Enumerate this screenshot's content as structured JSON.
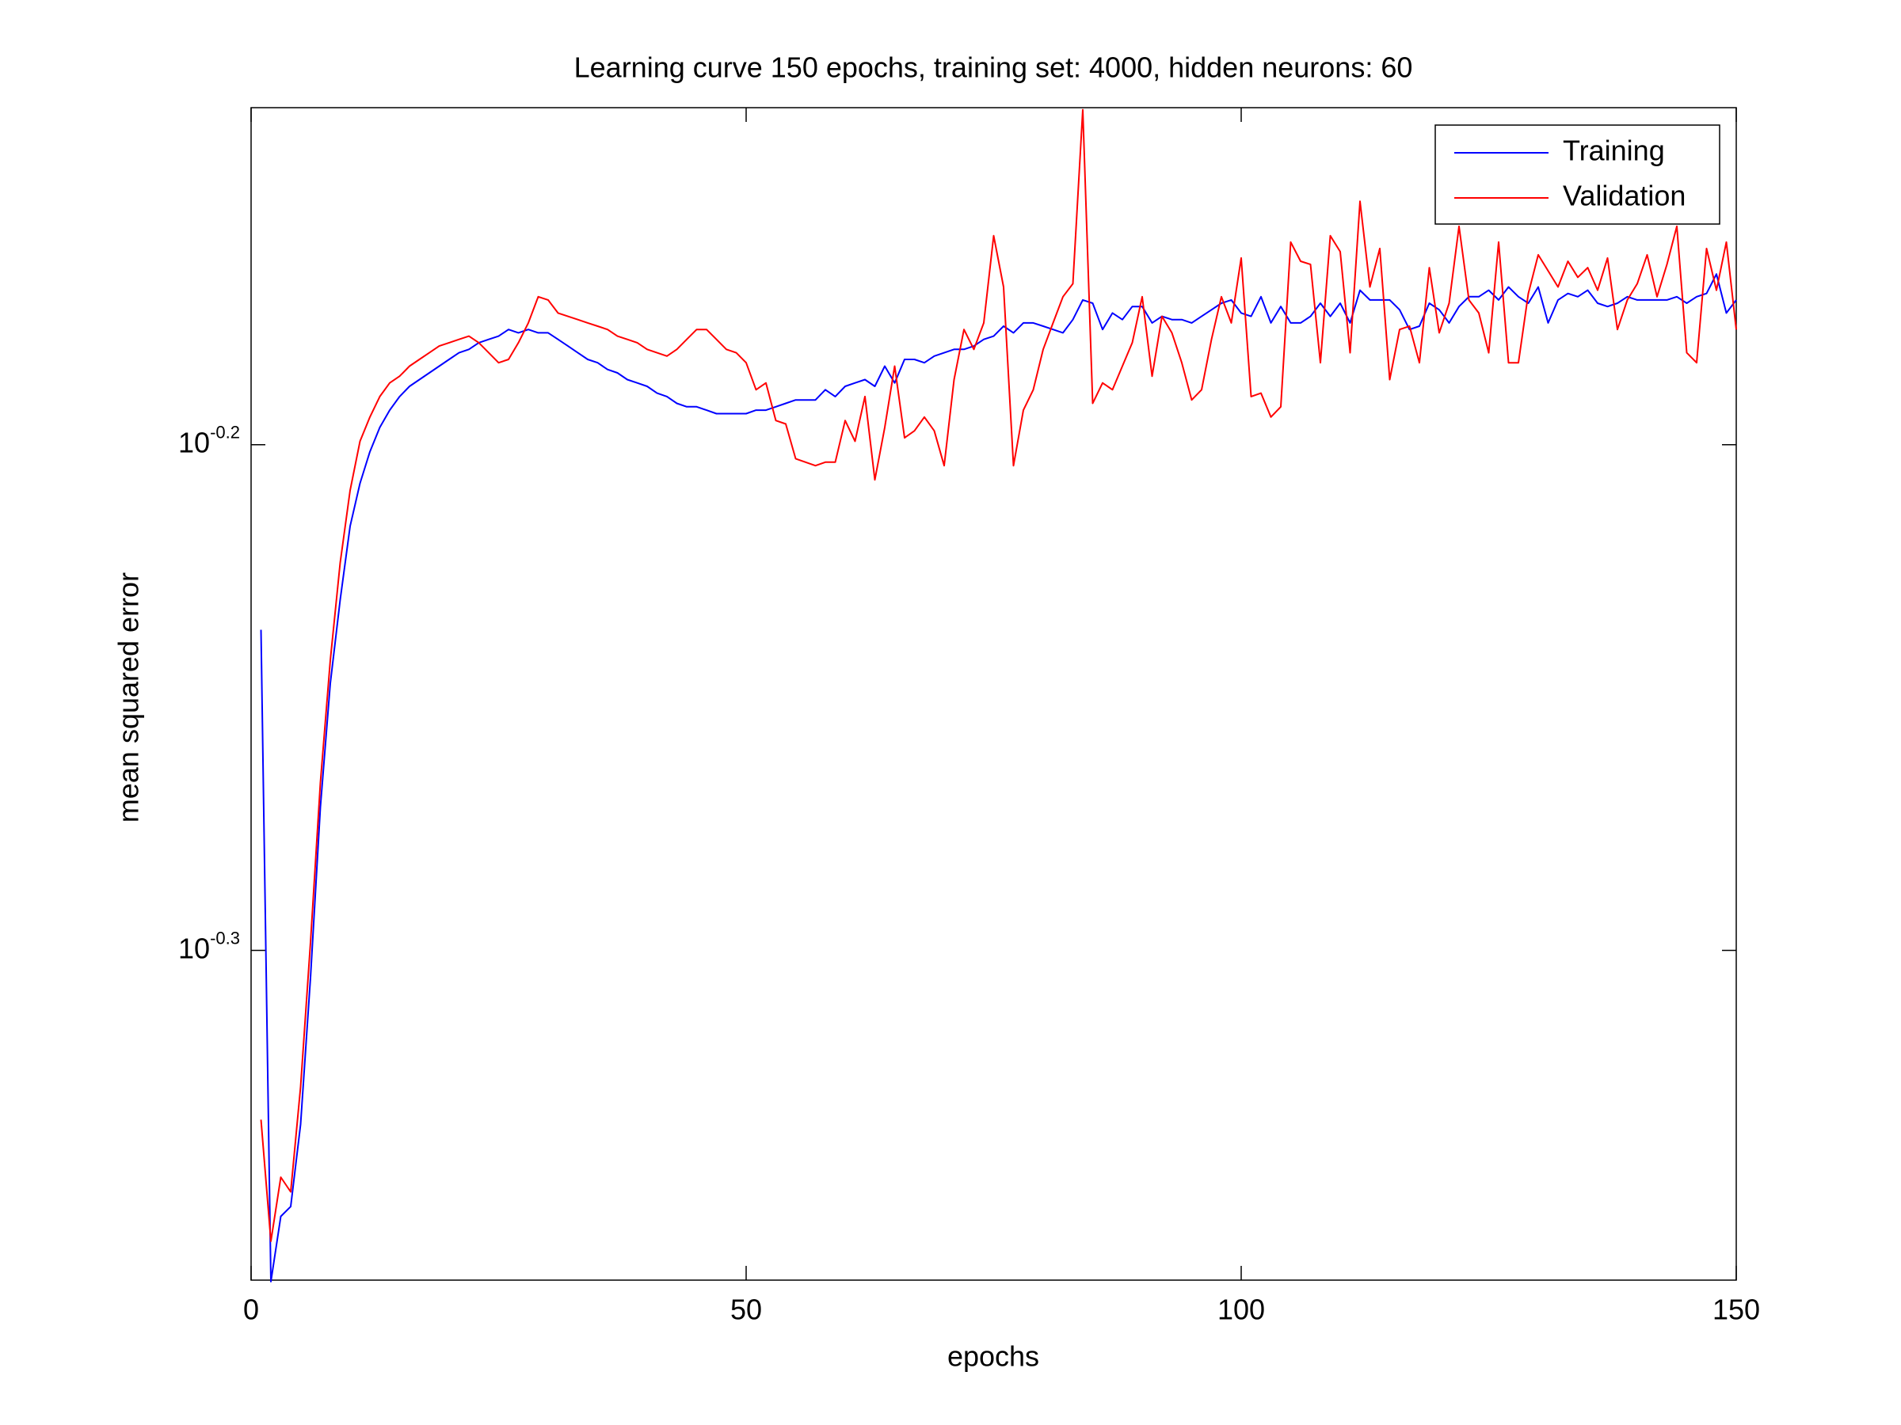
{
  "chart_data": {
    "type": "line",
    "title": "Learning curve 150 epochs, training set: 4000, hidden neurons: 60",
    "xlabel": "epochs",
    "ylabel": "mean squared error",
    "yscale": "log",
    "legend": "northeast",
    "xlim": [
      0,
      150
    ],
    "xticks": [
      0,
      50,
      100,
      150
    ],
    "ylim": [
      0.4313,
      0.7357
    ],
    "yticks": [
      {
        "value": 0.5012,
        "label": "10",
        "exponent": "-0.3"
      },
      {
        "value": 0.631,
        "label": "10",
        "exponent": "-0.2"
      }
    ],
    "x": [
      1,
      2,
      3,
      4,
      5,
      6,
      7,
      8,
      9,
      10,
      11,
      12,
      13,
      14,
      15,
      16,
      17,
      18,
      19,
      20,
      21,
      22,
      23,
      24,
      25,
      26,
      27,
      28,
      29,
      30,
      31,
      32,
      33,
      34,
      35,
      36,
      37,
      38,
      39,
      40,
      41,
      42,
      43,
      44,
      45,
      46,
      47,
      48,
      49,
      50,
      51,
      52,
      53,
      54,
      55,
      56,
      57,
      58,
      59,
      60,
      61,
      62,
      63,
      64,
      65,
      66,
      67,
      68,
      69,
      70,
      71,
      72,
      73,
      74,
      75,
      76,
      77,
      78,
      79,
      80,
      81,
      82,
      83,
      84,
      85,
      86,
      87,
      88,
      89,
      90,
      91,
      92,
      93,
      94,
      95,
      96,
      97,
      98,
      99,
      100,
      101,
      102,
      103,
      104,
      105,
      106,
      107,
      108,
      109,
      110,
      111,
      112,
      113,
      114,
      115,
      116,
      117,
      118,
      119,
      120,
      121,
      122,
      123,
      124,
      125,
      126,
      127,
      128,
      129,
      130,
      131,
      132,
      133,
      134,
      135,
      136,
      137,
      138,
      139,
      140,
      141,
      142,
      143,
      144,
      145,
      146,
      147,
      148,
      149,
      150
    ],
    "series": [
      {
        "name": "Training",
        "color": "#0000ff",
        "values": [
          0.58,
          0.431,
          0.444,
          0.446,
          0.463,
          0.495,
          0.535,
          0.566,
          0.588,
          0.608,
          0.62,
          0.629,
          0.636,
          0.641,
          0.645,
          0.648,
          0.65,
          0.652,
          0.654,
          0.656,
          0.658,
          0.659,
          0.661,
          0.662,
          0.663,
          0.665,
          0.664,
          0.665,
          0.664,
          0.664,
          0.662,
          0.66,
          0.658,
          0.656,
          0.655,
          0.653,
          0.652,
          0.65,
          0.649,
          0.648,
          0.646,
          0.645,
          0.643,
          0.642,
          0.642,
          0.641,
          0.64,
          0.64,
          0.64,
          0.64,
          0.641,
          0.641,
          0.642,
          0.643,
          0.644,
          0.644,
          0.644,
          0.647,
          0.645,
          0.648,
          0.649,
          0.65,
          0.648,
          0.654,
          0.649,
          0.656,
          0.656,
          0.655,
          0.657,
          0.658,
          0.659,
          0.659,
          0.66,
          0.662,
          0.663,
          0.666,
          0.664,
          0.667,
          0.667,
          0.666,
          0.665,
          0.664,
          0.668,
          0.674,
          0.673,
          0.665,
          0.67,
          0.668,
          0.672,
          0.672,
          0.667,
          0.669,
          0.668,
          0.668,
          0.667,
          0.669,
          0.671,
          0.673,
          0.674,
          0.67,
          0.669,
          0.675,
          0.667,
          0.672,
          0.667,
          0.667,
          0.669,
          0.673,
          0.669,
          0.673,
          0.667,
          0.677,
          0.674,
          0.674,
          0.674,
          0.671,
          0.665,
          0.666,
          0.673,
          0.671,
          0.667,
          0.672,
          0.675,
          0.675,
          0.677,
          0.674,
          0.678,
          0.675,
          0.673,
          0.678,
          0.667,
          0.674,
          0.676,
          0.675,
          0.677,
          0.673,
          0.672,
          0.673,
          0.675,
          0.674,
          0.674,
          0.674,
          0.674,
          0.675,
          0.673,
          0.675,
          0.676,
          0.682,
          0.67,
          0.674
        ]
      },
      {
        "name": "Validation",
        "color": "#ff0000",
        "values": [
          0.464,
          0.439,
          0.452,
          0.449,
          0.471,
          0.503,
          0.541,
          0.572,
          0.598,
          0.618,
          0.632,
          0.639,
          0.645,
          0.649,
          0.651,
          0.654,
          0.656,
          0.658,
          0.66,
          0.661,
          0.662,
          0.663,
          0.661,
          0.658,
          0.655,
          0.656,
          0.661,
          0.667,
          0.675,
          0.674,
          0.67,
          0.669,
          0.668,
          0.667,
          0.666,
          0.665,
          0.663,
          0.662,
          0.661,
          0.659,
          0.658,
          0.657,
          0.659,
          0.662,
          0.665,
          0.665,
          0.662,
          0.659,
          0.658,
          0.655,
          0.647,
          0.649,
          0.638,
          0.637,
          0.627,
          0.626,
          0.625,
          0.626,
          0.626,
          0.638,
          0.632,
          0.645,
          0.621,
          0.636,
          0.654,
          0.633,
          0.635,
          0.639,
          0.635,
          0.625,
          0.65,
          0.665,
          0.659,
          0.667,
          0.694,
          0.678,
          0.625,
          0.641,
          0.647,
          0.659,
          0.667,
          0.675,
          0.679,
          0.735,
          0.643,
          0.649,
          0.647,
          0.654,
          0.661,
          0.675,
          0.651,
          0.669,
          0.664,
          0.655,
          0.644,
          0.647,
          0.662,
          0.675,
          0.667,
          0.687,
          0.645,
          0.646,
          0.639,
          0.642,
          0.692,
          0.686,
          0.685,
          0.655,
          0.694,
          0.689,
          0.658,
          0.705,
          0.678,
          0.69,
          0.65,
          0.665,
          0.666,
          0.655,
          0.684,
          0.664,
          0.673,
          0.697,
          0.674,
          0.67,
          0.658,
          0.692,
          0.655,
          0.655,
          0.676,
          0.688,
          0.683,
          0.678,
          0.686,
          0.681,
          0.684,
          0.677,
          0.687,
          0.665,
          0.674,
          0.679,
          0.688,
          0.675,
          0.685,
          0.697,
          0.658,
          0.655,
          0.69,
          0.677,
          0.692,
          0.665
        ]
      }
    ]
  }
}
